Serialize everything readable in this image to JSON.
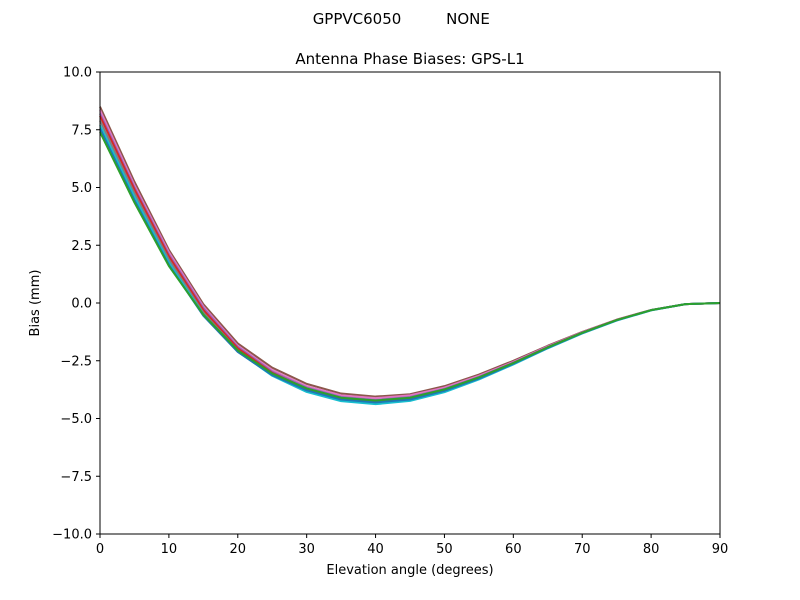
{
  "figure": {
    "suptitle_left": "GPPVC6050",
    "suptitle_right": "NONE"
  },
  "chart_data": {
    "type": "line",
    "title": "Antenna Phase Biases: GPS-L1",
    "xlabel": "Elevation angle (degrees)",
    "ylabel": "Bias (mm)",
    "xlim": [
      0,
      90
    ],
    "ylim": [
      -10,
      10
    ],
    "xticks": [
      0,
      10,
      20,
      30,
      40,
      50,
      60,
      70,
      80,
      90
    ],
    "xtick_labels": [
      "0",
      "10",
      "20",
      "30",
      "40",
      "50",
      "60",
      "70",
      "80",
      "90"
    ],
    "yticks": [
      10,
      7.5,
      5,
      2.5,
      0,
      -2.5,
      -5,
      -7.5,
      -10
    ],
    "ytick_labels": [
      "10.0",
      "7.5",
      "5.0",
      "2.5",
      "0.0",
      "−2.5",
      "−5.0",
      "−7.5",
      "−10.0"
    ],
    "grid": false,
    "legend": "none",
    "x": [
      0,
      5,
      10,
      15,
      20,
      25,
      30,
      35,
      40,
      45,
      50,
      55,
      60,
      65,
      70,
      75,
      80,
      85,
      90
    ],
    "series": [
      {
        "color": "#8c564b",
        "values": [
          8.5,
          5.25,
          2.3,
          -0.05,
          -1.75,
          -2.8,
          -3.5,
          -3.92,
          -4.05,
          -3.95,
          -3.6,
          -3.1,
          -2.5,
          -1.85,
          -1.25,
          -0.72,
          -0.3,
          -0.05,
          0.0
        ]
      },
      {
        "color": "#e377c2",
        "values": [
          8.35,
          5.1,
          2.2,
          -0.15,
          -1.85,
          -2.9,
          -3.6,
          -4.0,
          -4.12,
          -4.0,
          -3.66,
          -3.15,
          -2.55,
          -1.88,
          -1.27,
          -0.73,
          -0.31,
          -0.05,
          0.0
        ]
      },
      {
        "color": "#9467bd",
        "values": [
          8.2,
          5.0,
          2.1,
          -0.22,
          -1.9,
          -2.97,
          -3.66,
          -4.07,
          -4.2,
          -4.07,
          -3.72,
          -3.2,
          -2.58,
          -1.9,
          -1.28,
          -0.74,
          -0.31,
          -0.05,
          0.0
        ]
      },
      {
        "color": "#d62728",
        "values": [
          8.1,
          4.92,
          2.02,
          -0.3,
          -1.96,
          -3.02,
          -3.72,
          -4.12,
          -4.25,
          -4.12,
          -3.76,
          -3.23,
          -2.6,
          -1.92,
          -1.29,
          -0.74,
          -0.31,
          -0.05,
          0.0
        ]
      },
      {
        "color": "#7f7f7f",
        "values": [
          7.9,
          4.75,
          1.88,
          -0.42,
          -2.05,
          -3.1,
          -3.8,
          -4.2,
          -4.33,
          -4.2,
          -3.82,
          -3.28,
          -2.64,
          -1.95,
          -1.31,
          -0.75,
          -0.31,
          -0.05,
          0.0
        ]
      },
      {
        "color": "#17becf",
        "values": [
          7.7,
          4.6,
          1.75,
          -0.5,
          -2.1,
          -3.15,
          -3.85,
          -4.25,
          -4.38,
          -4.24,
          -3.86,
          -3.31,
          -2.66,
          -1.96,
          -1.32,
          -0.76,
          -0.32,
          -0.05,
          0.0
        ]
      },
      {
        "color": "#1f77b4",
        "values": [
          7.55,
          4.45,
          1.65,
          -0.55,
          -2.12,
          -3.12,
          -3.78,
          -4.18,
          -4.3,
          -4.18,
          -3.8,
          -3.27,
          -2.63,
          -1.94,
          -1.3,
          -0.75,
          -0.31,
          -0.05,
          0.0
        ]
      },
      {
        "color": "#2ca02c",
        "values": [
          7.4,
          4.35,
          1.6,
          -0.5,
          -2.05,
          -3.05,
          -3.7,
          -4.1,
          -4.22,
          -4.1,
          -3.74,
          -3.22,
          -2.6,
          -1.92,
          -1.29,
          -0.74,
          -0.31,
          -0.05,
          0.0
        ]
      }
    ]
  }
}
